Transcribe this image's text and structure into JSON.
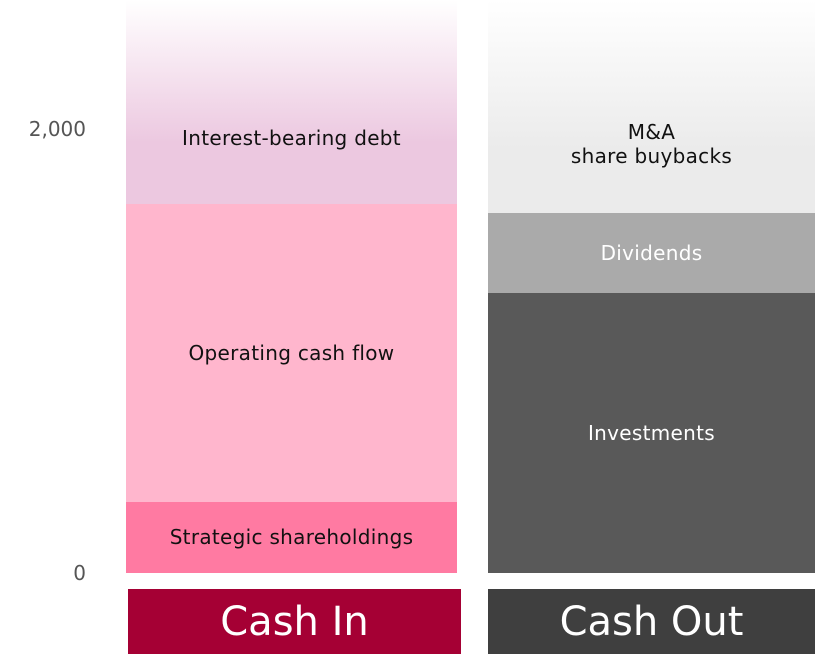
{
  "chart_data": {
    "type": "stacked-bar",
    "categories": [
      "Cash In",
      "Cash Out"
    ],
    "category_colors": [
      "#a50034",
      "#3f3f3f"
    ],
    "series": [
      {
        "name": "Strategic shareholdings",
        "color": "#ff7aa2",
        "values": [
          320,
          null
        ]
      },
      {
        "name": "Operating cash flow",
        "color": "#ffb6cd",
        "values": [
          1340,
          null
        ]
      },
      {
        "name": "Interest-bearing debt",
        "color": "#ecc8e0",
        "values": [
          920,
          null
        ]
      },
      {
        "name": "Investments",
        "color": "#595959",
        "values": [
          null,
          1260
        ]
      },
      {
        "name": "Dividends",
        "color": "#aaaaaa",
        "values": [
          null,
          360
        ]
      },
      {
        "name": "M&A\nshare buybacks",
        "color": "#ebebeb",
        "values": [
          null,
          960
        ]
      }
    ],
    "ylim": [
      0,
      2580
    ],
    "yticks": [
      0,
      {
        "value": 2000,
        "label": "2,000"
      }
    ]
  }
}
